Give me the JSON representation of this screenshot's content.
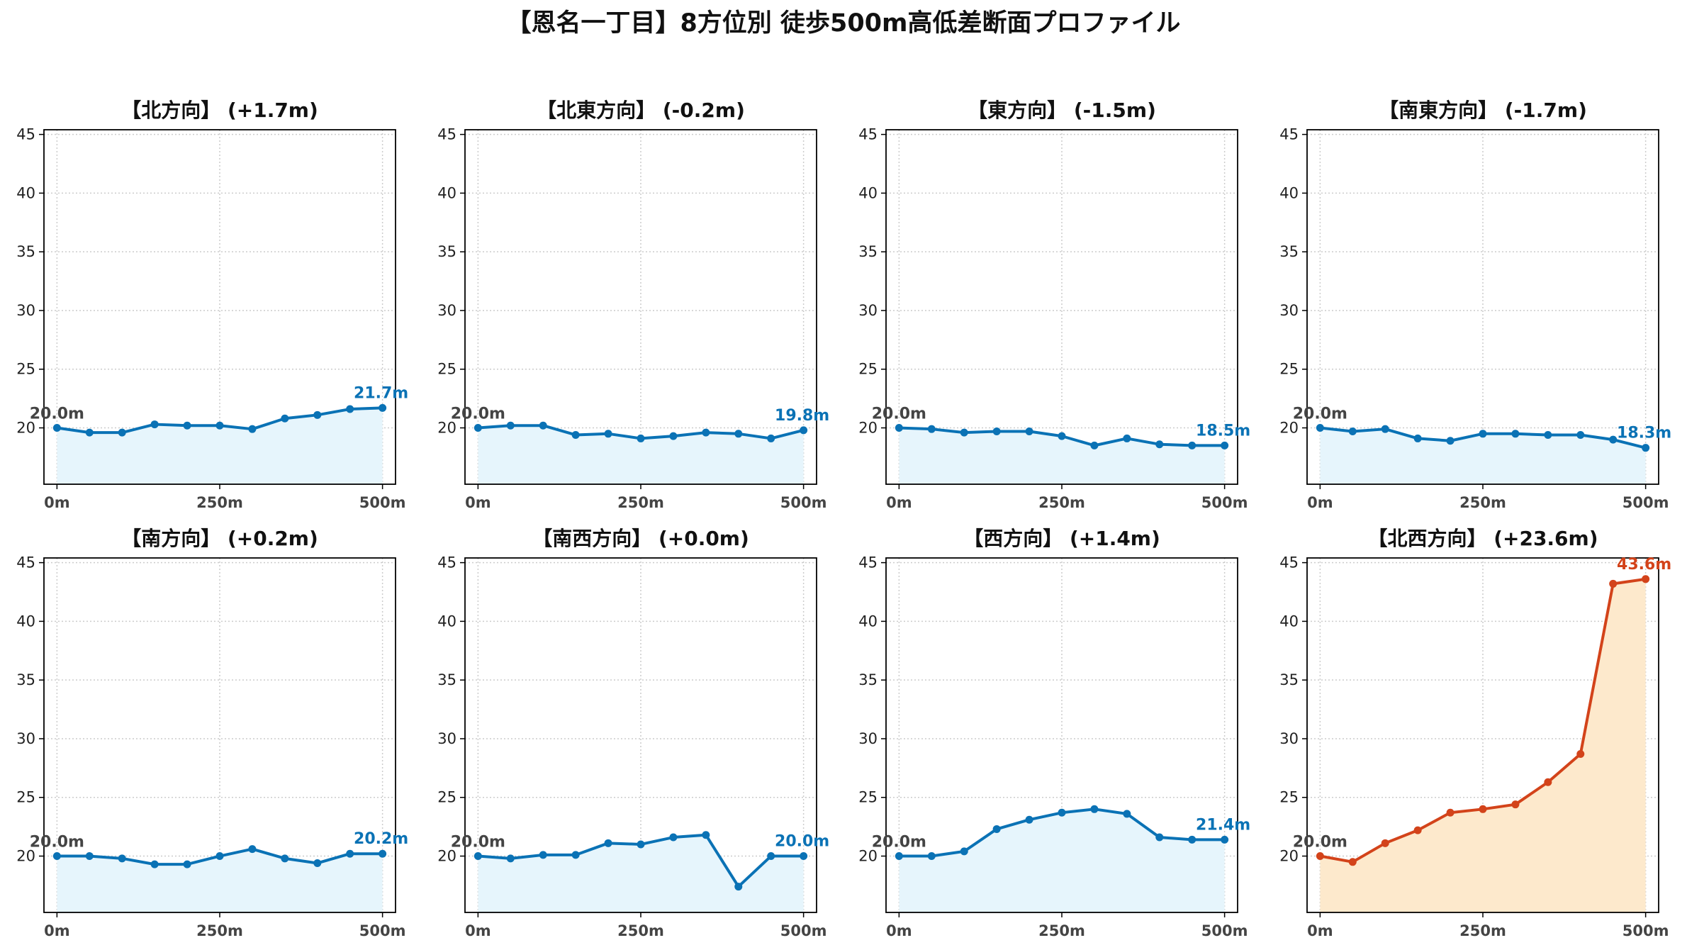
{
  "figure_title": "【恩名一丁目】8方位別 徒歩500m高低差断面プロファイル",
  "colors": {
    "normal_line": "#0a72b5",
    "normal_fill": "#e6f5fc",
    "highlight_line": "#d3431a",
    "highlight_fill": "#fde9cc",
    "start_label": "#444444",
    "grid": "#cccccc"
  },
  "chart_data": [
    {
      "type": "area",
      "title": "【北方向】 (+1.7m)",
      "x": [
        0,
        50,
        100,
        150,
        200,
        250,
        300,
        350,
        400,
        450,
        500
      ],
      "values": [
        20.0,
        19.6,
        19.6,
        20.3,
        20.2,
        20.2,
        19.9,
        20.8,
        21.1,
        21.6,
        21.7
      ],
      "start_label": "20.0m",
      "end_label": "21.7m",
      "highlight": false,
      "ylim": [
        15.2,
        45.4
      ],
      "yticks": [
        20,
        25,
        30,
        35,
        40,
        45
      ],
      "xticks": [
        0,
        250,
        500
      ],
      "xtick_labels": [
        "0m",
        "250m",
        "500m"
      ],
      "grid": true
    },
    {
      "type": "area",
      "title": "【北東方向】 (-0.2m)",
      "x": [
        0,
        50,
        100,
        150,
        200,
        250,
        300,
        350,
        400,
        450,
        500
      ],
      "values": [
        20.0,
        20.2,
        20.2,
        19.4,
        19.5,
        19.1,
        19.3,
        19.6,
        19.5,
        19.1,
        19.8
      ],
      "start_label": "20.0m",
      "end_label": "19.8m",
      "highlight": false,
      "ylim": [
        15.2,
        45.4
      ],
      "yticks": [
        20,
        25,
        30,
        35,
        40,
        45
      ],
      "xticks": [
        0,
        250,
        500
      ],
      "xtick_labels": [
        "0m",
        "250m",
        "500m"
      ],
      "grid": true
    },
    {
      "type": "area",
      "title": "【東方向】 (-1.5m)",
      "x": [
        0,
        50,
        100,
        150,
        200,
        250,
        300,
        350,
        400,
        450,
        500
      ],
      "values": [
        20.0,
        19.9,
        19.6,
        19.7,
        19.7,
        19.3,
        18.5,
        19.1,
        18.6,
        18.5,
        18.5
      ],
      "start_label": "20.0m",
      "end_label": "18.5m",
      "highlight": false,
      "ylim": [
        15.2,
        45.4
      ],
      "yticks": [
        20,
        25,
        30,
        35,
        40,
        45
      ],
      "xticks": [
        0,
        250,
        500
      ],
      "xtick_labels": [
        "0m",
        "250m",
        "500m"
      ],
      "grid": true
    },
    {
      "type": "area",
      "title": "【南東方向】 (-1.7m)",
      "x": [
        0,
        50,
        100,
        150,
        200,
        250,
        300,
        350,
        400,
        450,
        500
      ],
      "values": [
        20.0,
        19.7,
        19.9,
        19.1,
        18.9,
        19.5,
        19.5,
        19.4,
        19.4,
        19.0,
        18.3
      ],
      "start_label": "20.0m",
      "end_label": "18.3m",
      "highlight": false,
      "ylim": [
        15.2,
        45.4
      ],
      "yticks": [
        20,
        25,
        30,
        35,
        40,
        45
      ],
      "xticks": [
        0,
        250,
        500
      ],
      "xtick_labels": [
        "0m",
        "250m",
        "500m"
      ],
      "grid": true
    },
    {
      "type": "area",
      "title": "【南方向】 (+0.2m)",
      "x": [
        0,
        50,
        100,
        150,
        200,
        250,
        300,
        350,
        400,
        450,
        500
      ],
      "values": [
        20.0,
        20.0,
        19.8,
        19.3,
        19.3,
        20.0,
        20.6,
        19.8,
        19.4,
        20.2,
        20.2
      ],
      "start_label": "20.0m",
      "end_label": "20.2m",
      "highlight": false,
      "ylim": [
        15.2,
        45.4
      ],
      "yticks": [
        20,
        25,
        30,
        35,
        40,
        45
      ],
      "xticks": [
        0,
        250,
        500
      ],
      "xtick_labels": [
        "0m",
        "250m",
        "500m"
      ],
      "grid": true
    },
    {
      "type": "area",
      "title": "【南西方向】 (+0.0m)",
      "x": [
        0,
        50,
        100,
        150,
        200,
        250,
        300,
        350,
        400,
        450,
        500
      ],
      "values": [
        20.0,
        19.8,
        20.1,
        20.1,
        21.1,
        21.0,
        21.6,
        21.8,
        17.4,
        20.0,
        20.0
      ],
      "start_label": "20.0m",
      "end_label": "20.0m",
      "highlight": false,
      "ylim": [
        15.2,
        45.4
      ],
      "yticks": [
        20,
        25,
        30,
        35,
        40,
        45
      ],
      "xticks": [
        0,
        250,
        500
      ],
      "xtick_labels": [
        "0m",
        "250m",
        "500m"
      ],
      "grid": true
    },
    {
      "type": "area",
      "title": "【西方向】 (+1.4m)",
      "x": [
        0,
        50,
        100,
        150,
        200,
        250,
        300,
        350,
        400,
        450,
        500
      ],
      "values": [
        20.0,
        20.0,
        20.4,
        22.3,
        23.1,
        23.7,
        24.0,
        23.6,
        21.6,
        21.4,
        21.4
      ],
      "start_label": "20.0m",
      "end_label": "21.4m",
      "highlight": false,
      "ylim": [
        15.2,
        45.4
      ],
      "yticks": [
        20,
        25,
        30,
        35,
        40,
        45
      ],
      "xticks": [
        0,
        250,
        500
      ],
      "xtick_labels": [
        "0m",
        "250m",
        "500m"
      ],
      "grid": true
    },
    {
      "type": "area",
      "title": "【北西方向】 (+23.6m)",
      "x": [
        0,
        50,
        100,
        150,
        200,
        250,
        300,
        350,
        400,
        450,
        500
      ],
      "values": [
        20.0,
        19.5,
        21.1,
        22.2,
        23.7,
        24.0,
        24.4,
        26.3,
        28.7,
        43.2,
        43.6
      ],
      "start_label": "20.0m",
      "end_label": "43.6m",
      "highlight": true,
      "ylim": [
        15.2,
        45.4
      ],
      "yticks": [
        20,
        25,
        30,
        35,
        40,
        45
      ],
      "xticks": [
        0,
        250,
        500
      ],
      "xtick_labels": [
        "0m",
        "250m",
        "500m"
      ],
      "grid": true
    }
  ]
}
